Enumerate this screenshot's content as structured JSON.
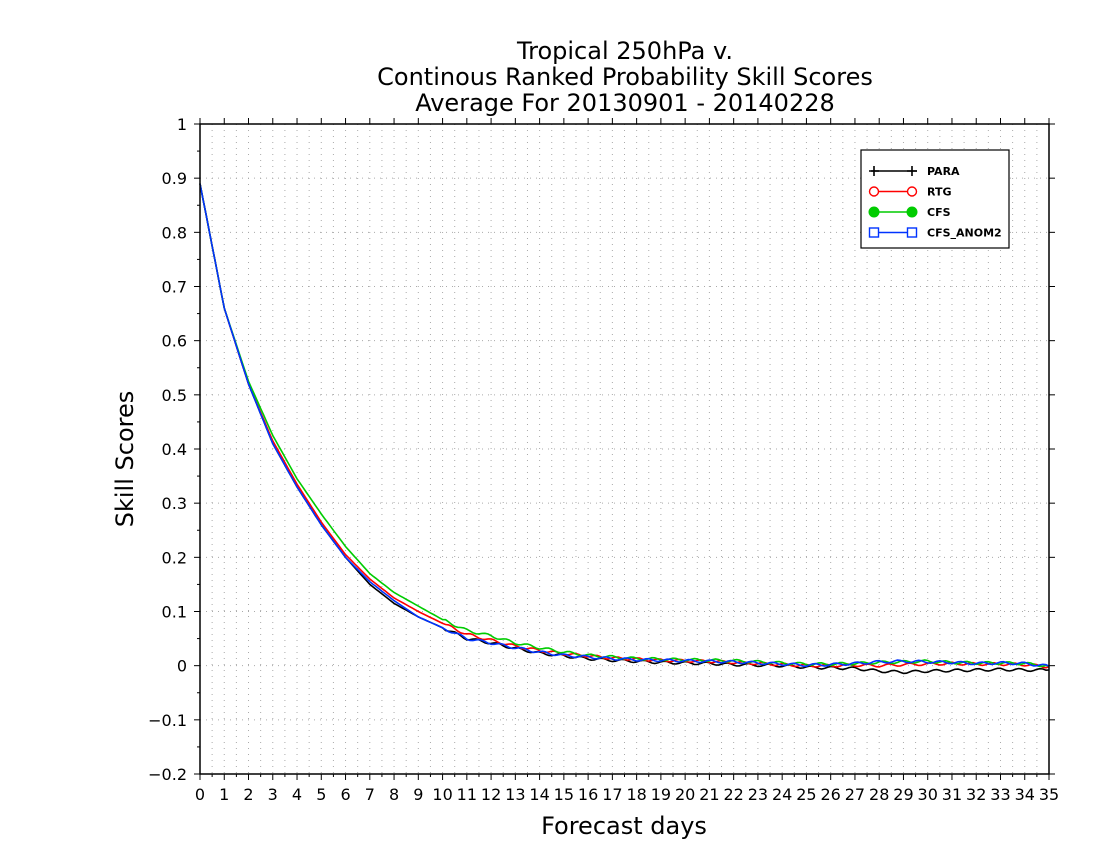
{
  "chart_data": {
    "type": "line",
    "title_lines": [
      "Tropical 250hPa v.",
      "Continous Ranked Probability Skill Scores",
      "Average For 20130901 - 20140228"
    ],
    "xlabel": "Forecast days",
    "ylabel": "Skill Scores",
    "xlim": [
      0,
      35
    ],
    "ylim": [
      -0.2,
      1
    ],
    "x_ticks": [
      0,
      1,
      2,
      3,
      4,
      5,
      6,
      7,
      8,
      9,
      10,
      11,
      12,
      13,
      14,
      15,
      16,
      17,
      18,
      19,
      20,
      21,
      22,
      23,
      24,
      25,
      26,
      27,
      28,
      29,
      30,
      31,
      32,
      33,
      34,
      35
    ],
    "y_ticks": [
      -0.2,
      -0.1,
      0,
      0.1,
      0.2,
      0.3,
      0.4,
      0.5,
      0.6,
      0.7,
      0.8,
      0.9,
      1
    ],
    "y_tick_labels": [
      "−0.2",
      "−0.1",
      "0",
      "0.1",
      "0.2",
      "0.3",
      "0.4",
      "0.5",
      "0.6",
      "0.7",
      "0.8",
      "0.9",
      "1"
    ],
    "grid": true,
    "legend_position": "top-right",
    "x": [
      0,
      1,
      2,
      3,
      4,
      5,
      6,
      7,
      8,
      9,
      10,
      11,
      12,
      13,
      14,
      15,
      16,
      17,
      18,
      19,
      20,
      21,
      22,
      23,
      24,
      25,
      26,
      27,
      28,
      29,
      30,
      31,
      32,
      33,
      34,
      35
    ],
    "series": [
      {
        "name": "PARA",
        "color": "#000000",
        "marker": "plus",
        "values": [
          0.89,
          0.66,
          0.52,
          0.41,
          0.33,
          0.26,
          0.2,
          0.15,
          0.115,
          0.09,
          0.07,
          0.05,
          0.042,
          0.032,
          0.023,
          0.018,
          0.013,
          0.01,
          0.008,
          0.006,
          0.005,
          0.004,
          0.002,
          0.001,
          0.0,
          -0.003,
          -0.004,
          -0.005,
          -0.01,
          -0.012,
          -0.01,
          -0.009,
          -0.008,
          -0.007,
          -0.008,
          -0.008
        ]
      },
      {
        "name": "RTG",
        "color": "#ff0000",
        "marker": "circle-open",
        "values": [
          0.89,
          0.66,
          0.52,
          0.415,
          0.335,
          0.265,
          0.205,
          0.16,
          0.125,
          0.1,
          0.078,
          0.058,
          0.047,
          0.036,
          0.028,
          0.022,
          0.018,
          0.014,
          0.012,
          0.01,
          0.009,
          0.008,
          0.006,
          0.004,
          0.002,
          0.0,
          0.0,
          0.001,
          0.0,
          0.002,
          0.003,
          0.004,
          0.003,
          0.003,
          0.002,
          -0.002
        ]
      },
      {
        "name": "CFS",
        "color": "#00cc00",
        "marker": "circle-filled",
        "values": [
          0.89,
          0.66,
          0.525,
          0.425,
          0.345,
          0.28,
          0.22,
          0.17,
          0.135,
          0.11,
          0.085,
          0.065,
          0.055,
          0.042,
          0.033,
          0.025,
          0.019,
          0.016,
          0.013,
          0.012,
          0.011,
          0.01,
          0.009,
          0.007,
          0.005,
          0.003,
          0.003,
          0.004,
          0.006,
          0.007,
          0.008,
          0.006,
          0.005,
          0.005,
          0.004,
          -0.001
        ]
      },
      {
        "name": "CFS_ANOM2",
        "color": "#0033ff",
        "marker": "square-open",
        "values": [
          0.89,
          0.66,
          0.52,
          0.41,
          0.33,
          0.26,
          0.2,
          0.155,
          0.12,
          0.09,
          0.07,
          0.05,
          0.042,
          0.033,
          0.025,
          0.019,
          0.016,
          0.013,
          0.011,
          0.01,
          0.009,
          0.008,
          0.007,
          0.005,
          0.003,
          0.001,
          0.002,
          0.004,
          0.007,
          0.008,
          0.007,
          0.006,
          0.004,
          0.005,
          0.004,
          -0.001
        ]
      }
    ]
  }
}
